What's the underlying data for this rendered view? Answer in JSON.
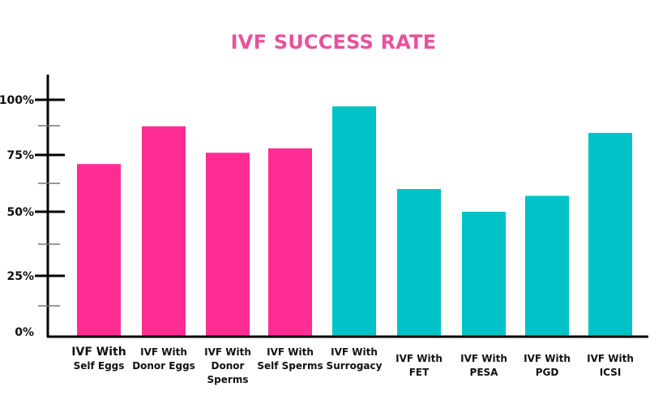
{
  "chart_data": {
    "type": "bar",
    "title": "IVF SUCCESS RATE",
    "xlabel": "",
    "ylabel": "",
    "ylim": [
      0,
      110
    ],
    "yticks": [
      "0%",
      "25%",
      "50%",
      "75%",
      "100%"
    ],
    "grid": false,
    "categories": [
      [
        "IVF With",
        "Self Eggs"
      ],
      [
        "IVF With",
        "Donor Eggs"
      ],
      [
        "IVF With",
        "Donor",
        "Sperms"
      ],
      [
        "IVF With",
        "Self Sperms"
      ],
      [
        "IVF With",
        "Surrogacy"
      ],
      [
        "IVF With",
        "FET"
      ],
      [
        "IVF With",
        "PESA"
      ],
      [
        "IVF With",
        "PGD"
      ],
      [
        "IVF With",
        "ICSI"
      ]
    ],
    "values": [
      71,
      88,
      76,
      78,
      97,
      60,
      50,
      57,
      85
    ],
    "colors": [
      "#ff2d93",
      "#ff2d93",
      "#ff2d93",
      "#ff2d93",
      "#00c2c7",
      "#00c2c7",
      "#00c2c7",
      "#00c2c7",
      "#00c2c7"
    ]
  }
}
